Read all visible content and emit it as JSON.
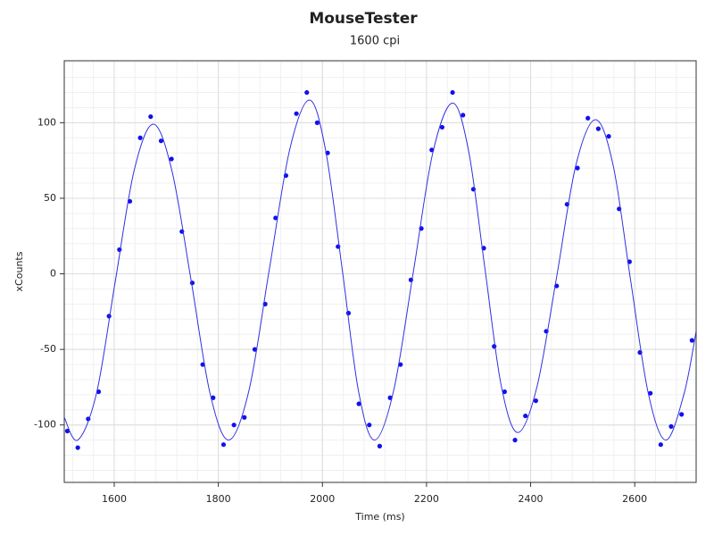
{
  "chart_data": {
    "type": "scatter",
    "title": "MouseTester",
    "subtitle": "1600 cpi",
    "x_label": "Time (ms)",
    "y_label": "xCounts",
    "xlim": [
      1504,
      2718
    ],
    "ylim": [
      -138,
      141
    ],
    "xticks": [
      1600,
      1800,
      2000,
      2200,
      2400,
      2600
    ],
    "yticks": [
      -100,
      -50,
      0,
      50,
      100
    ],
    "grid": true,
    "series": [
      {
        "name": "xCounts",
        "color": "#1010f0",
        "mode": "markers",
        "x": [
          1510,
          1530,
          1550,
          1570,
          1590,
          1610,
          1630,
          1650,
          1670,
          1690,
          1710,
          1730,
          1750,
          1770,
          1790,
          1810,
          1830,
          1850,
          1870,
          1890,
          1910,
          1930,
          1950,
          1970,
          1990,
          2010,
          2030,
          2050,
          2070,
          2090,
          2110,
          2130,
          2150,
          2170,
          2190,
          2210,
          2230,
          2250,
          2270,
          2290,
          2310,
          2330,
          2350,
          2370,
          2390,
          2410,
          2430,
          2450,
          2470,
          2490,
          2510,
          2530,
          2550,
          2570,
          2590,
          2610,
          2630,
          2650,
          2670,
          2690,
          2710
        ],
        "values": [
          -104,
          -115,
          -96,
          -78,
          -28,
          16,
          48,
          90,
          104,
          88,
          76,
          28,
          -6,
          -60,
          -82,
          -113,
          -100,
          -95,
          -50,
          -20,
          37,
          65,
          106,
          120,
          100,
          80,
          18,
          -26,
          -86,
          -100,
          -114,
          -82,
          -60,
          -4,
          30,
          82,
          97,
          120,
          105,
          56,
          17,
          -48,
          -78,
          -110,
          -94,
          -84,
          -38,
          -8,
          46,
          70,
          103,
          96,
          91,
          43,
          8,
          -52,
          -79,
          -113,
          -101,
          -93,
          -44
        ]
      },
      {
        "name": "fit",
        "color": "#3030e0",
        "mode": "line",
        "x": [
          1504,
          1530,
          1566,
          1602,
          1638,
          1675,
          1711,
          1748,
          1784,
          1820,
          1859,
          1898,
          1937,
          1975,
          2006,
          2038,
          2069,
          2100,
          2137,
          2175,
          2212,
          2250,
          2281,
          2312,
          2343,
          2375,
          2412,
          2450,
          2487,
          2525,
          2559,
          2592,
          2626,
          2660,
          2695,
          2718
        ],
        "values": [
          -95,
          -110,
          -79,
          -5,
          68,
          99,
          68,
          -5,
          -79,
          -110,
          -77,
          3,
          82,
          115,
          82,
          3,
          -77,
          -110,
          -77,
          2,
          80,
          113,
          81,
          4,
          -73,
          -105,
          -75,
          -2,
          72,
          102,
          71,
          -4,
          -79,
          -110,
          -79,
          -38
        ]
      }
    ]
  }
}
